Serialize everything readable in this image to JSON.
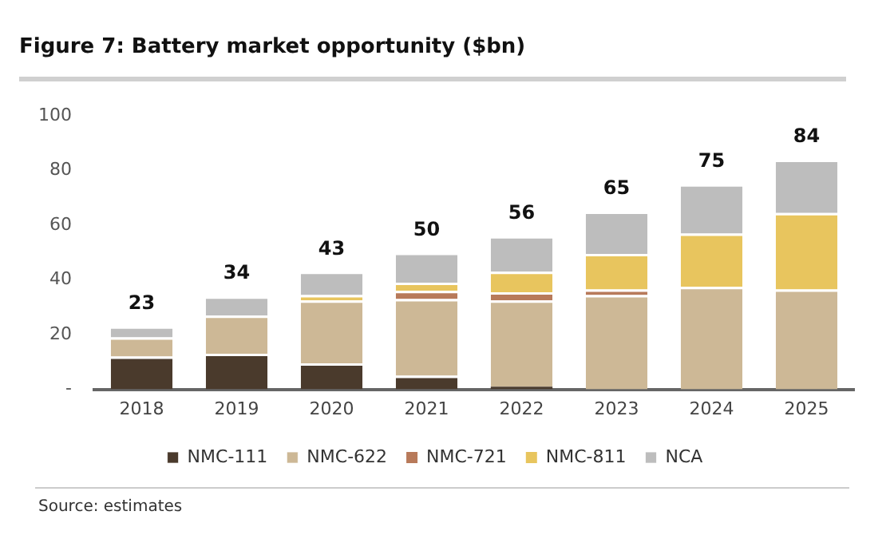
{
  "chart_data": {
    "type": "bar",
    "stacked": true,
    "title": "Figure 7: Battery market opportunity ($bn)",
    "categories": [
      "2018",
      "2019",
      "2020",
      "2021",
      "2022",
      "2023",
      "2024",
      "2025"
    ],
    "series": [
      {
        "name": "NMC-111",
        "color": "#4a3a2c",
        "values": [
          12,
          13,
          9.5,
          5,
          1,
          0,
          0,
          0
        ]
      },
      {
        "name": "NMC-622",
        "color": "#cdb896",
        "values": [
          7,
          14,
          23,
          28,
          31.5,
          34.5,
          37.5,
          36.5
        ]
      },
      {
        "name": "NMC-721",
        "color": "#b87a5a",
        "values": [
          0,
          0,
          0,
          3,
          3,
          2,
          0,
          0
        ]
      },
      {
        "name": "NMC-811",
        "color": "#e8c55e",
        "values": [
          0,
          0,
          2,
          3,
          7.5,
          13,
          19.5,
          28
        ]
      },
      {
        "name": "NCA",
        "color": "#bdbdbd",
        "values": [
          4,
          7,
          8.5,
          11,
          13,
          15.5,
          18,
          19.5
        ]
      }
    ],
    "totals": [
      "23",
      "34",
      "43",
      "50",
      "56",
      "65",
      "75",
      "84"
    ],
    "ylim": [
      0,
      100
    ],
    "yticks": [
      {
        "value": 0,
        "label": "-"
      },
      20,
      40,
      60,
      80,
      100
    ],
    "grid": false,
    "legend": "bottom",
    "annotations": [
      "Source:  estimates"
    ]
  }
}
